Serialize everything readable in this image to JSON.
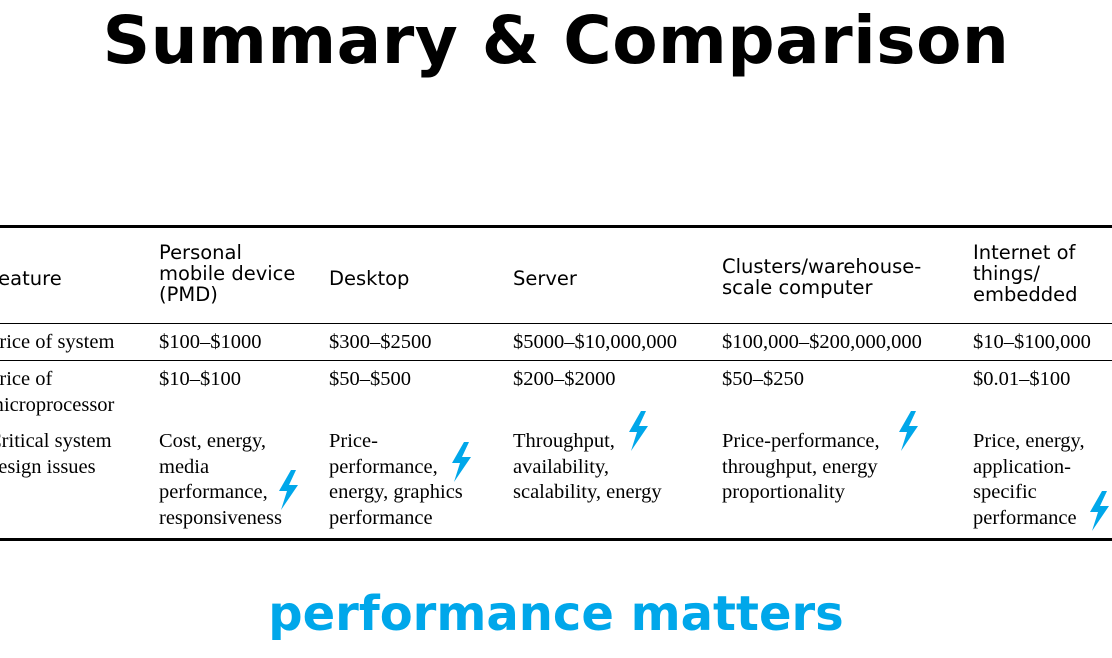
{
  "title": "Summary & Comparison",
  "subtitle": "performance matters",
  "colors": {
    "accent": "#00a7ea",
    "text": "#000000"
  },
  "table": {
    "headers": {
      "feature": [
        "Feature"
      ],
      "pmd": [
        "Personal",
        "mobile device",
        "(PMD)"
      ],
      "desktop": [
        "Desktop"
      ],
      "server": [
        "Server"
      ],
      "clusters": [
        "Clusters/warehouse-",
        "scale computer"
      ],
      "iot": [
        "Internet of",
        "things/",
        "embedded"
      ]
    },
    "rows": {
      "price_system": {
        "feature": [
          "Price of system"
        ],
        "pmd": [
          "$100–$1000"
        ],
        "desktop": [
          "$300–$2500"
        ],
        "server": [
          "$5000–$10,000,000"
        ],
        "clusters": [
          "$100,000–$200,000,000"
        ],
        "iot": [
          "$10–$100,000"
        ]
      },
      "price_micro": {
        "feature": [
          "Price of",
          "microprocessor"
        ],
        "pmd": [
          "$10–$100"
        ],
        "desktop": [
          "$50–$500"
        ],
        "server": [
          "$200–$2000"
        ],
        "clusters": [
          "$50–$250"
        ],
        "iot": [
          "$0.01–$100"
        ]
      },
      "design_issues": {
        "feature": [
          "Critical system",
          "design issues"
        ],
        "pmd": [
          "Cost, energy,",
          "media",
          "performance,",
          "responsiveness"
        ],
        "desktop": [
          "Price-",
          "performance,",
          "energy, graphics",
          "performance"
        ],
        "server": [
          "Throughput,",
          "availability,",
          "scalability, energy"
        ],
        "clusters": [
          "Price-performance,",
          "throughput, energy",
          "proportionality"
        ],
        "iot": [
          "Price, energy,",
          "application-",
          "specific",
          "performance"
        ]
      }
    }
  },
  "icons": [
    "lightning-bolt-icon"
  ]
}
